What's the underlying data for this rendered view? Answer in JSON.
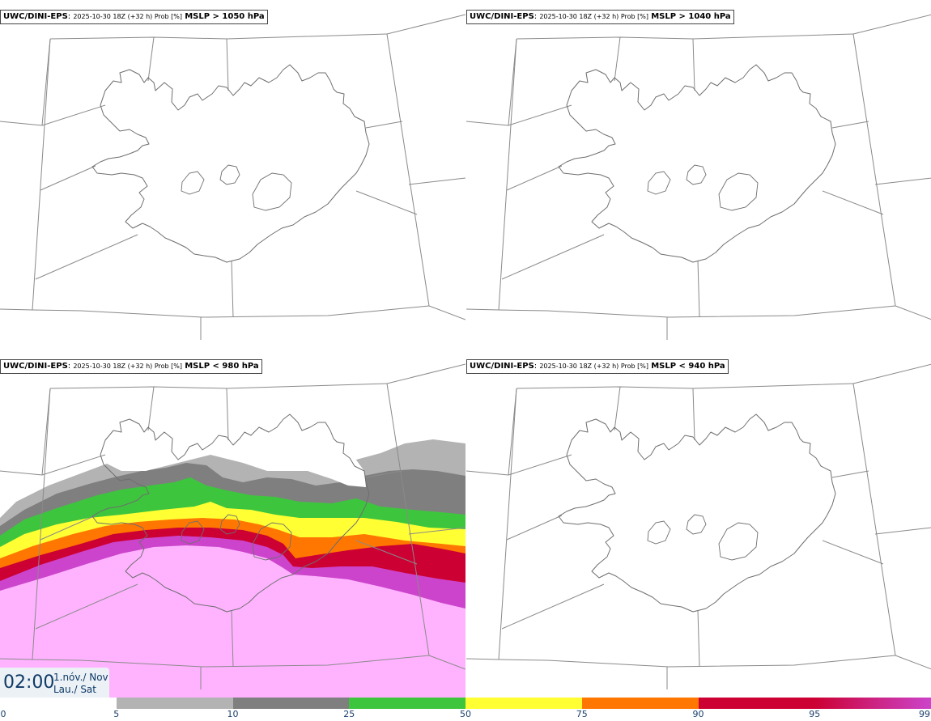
{
  "panels": [
    {
      "model": "UWC/DINI-EPS",
      "run": "2025-10-30 18Z (+32 h) Prob [%]",
      "threshold": "MSLP > 1050 hPa"
    },
    {
      "model": "UWC/DINI-EPS",
      "run": "2025-10-30 18Z (+32 h) Prob [%]",
      "threshold": "MSLP > 1040 hPa"
    },
    {
      "model": "UWC/DINI-EPS",
      "run": "2025-10-30 18Z (+32 h) Prob [%]",
      "threshold": "MSLP < 980 hPa"
    },
    {
      "model": "UWC/DINI-EPS",
      "run": "2025-10-30 18Z (+32 h) Prob [%]",
      "threshold": "MSLP < 940 hPa"
    }
  ],
  "valid_time": {
    "hour": "02:00",
    "date_line": "1.nóv./ Nov",
    "day_line": "Lau./ Sat"
  },
  "colorbar": {
    "ticks": [
      "0",
      "5",
      "10",
      "25",
      "50",
      "75",
      "90",
      "95",
      "99"
    ],
    "colors": [
      "#ffffff",
      "#b3b3b3",
      "#7f7f7f",
      "#3dc63d",
      "#ffff33",
      "#ff7700",
      "#cc0033",
      "#cc44cc",
      "#ffb3ff"
    ]
  },
  "probability_field_panel": 2,
  "probability_levels": [
    {
      "min": 5,
      "color": "#b3b3b3"
    },
    {
      "min": 10,
      "color": "#7f7f7f"
    },
    {
      "min": 25,
      "color": "#3dc63d"
    },
    {
      "min": 50,
      "color": "#ffff33"
    },
    {
      "min": 75,
      "color": "#ff7700"
    },
    {
      "min": 90,
      "color": "#cc0033"
    },
    {
      "min": 95,
      "color": "#cc44cc"
    },
    {
      "min": 99,
      "color": "#ffb3ff"
    }
  ]
}
